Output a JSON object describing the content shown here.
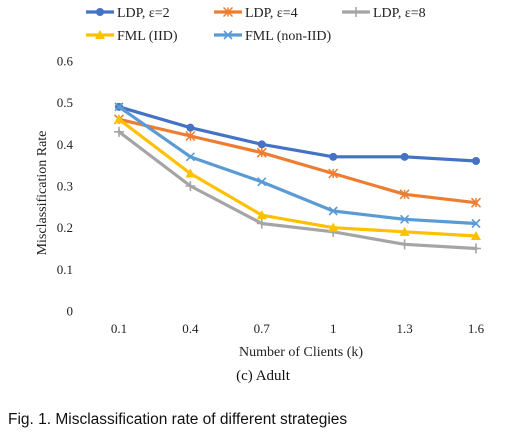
{
  "chart_data": {
    "type": "line",
    "categories": [
      "0.1",
      "0.4",
      "0.7",
      "1",
      "1.3",
      "1.6"
    ],
    "xlabel": "Number of Clients (k)",
    "ylabel": "Misclassification Rate",
    "ylim": [
      0,
      0.6
    ],
    "yticks": [
      "0",
      "0.1",
      "0.2",
      "0.3",
      "0.4",
      "0.5",
      "0.6"
    ],
    "grid": false,
    "legend": "top",
    "series": [
      {
        "name": "LDP, ε=2",
        "color": "#4472C4",
        "marker": "circle",
        "values": [
          0.49,
          0.44,
          0.4,
          0.37,
          0.37,
          0.36
        ]
      },
      {
        "name": "LDP, ε=4",
        "color": "#ED7D31",
        "marker": "star",
        "values": [
          0.46,
          0.42,
          0.38,
          0.33,
          0.28,
          0.26
        ]
      },
      {
        "name": "LDP, ε=8",
        "color": "#A5A5A5",
        "marker": "plus",
        "values": [
          0.43,
          0.3,
          0.21,
          0.19,
          0.16,
          0.15
        ]
      },
      {
        "name": "FML (IID)",
        "color": "#FFC000",
        "marker": "triangle",
        "values": [
          0.46,
          0.33,
          0.23,
          0.2,
          0.19,
          0.18
        ]
      },
      {
        "name": "FML (non-IID)",
        "color": "#5B9BD5",
        "marker": "x",
        "values": [
          0.49,
          0.37,
          0.31,
          0.24,
          0.22,
          0.21
        ]
      }
    ]
  },
  "subcaption": "(c) Adult",
  "figcaption": "Fig. 1. Misclassification rate of different strategies"
}
